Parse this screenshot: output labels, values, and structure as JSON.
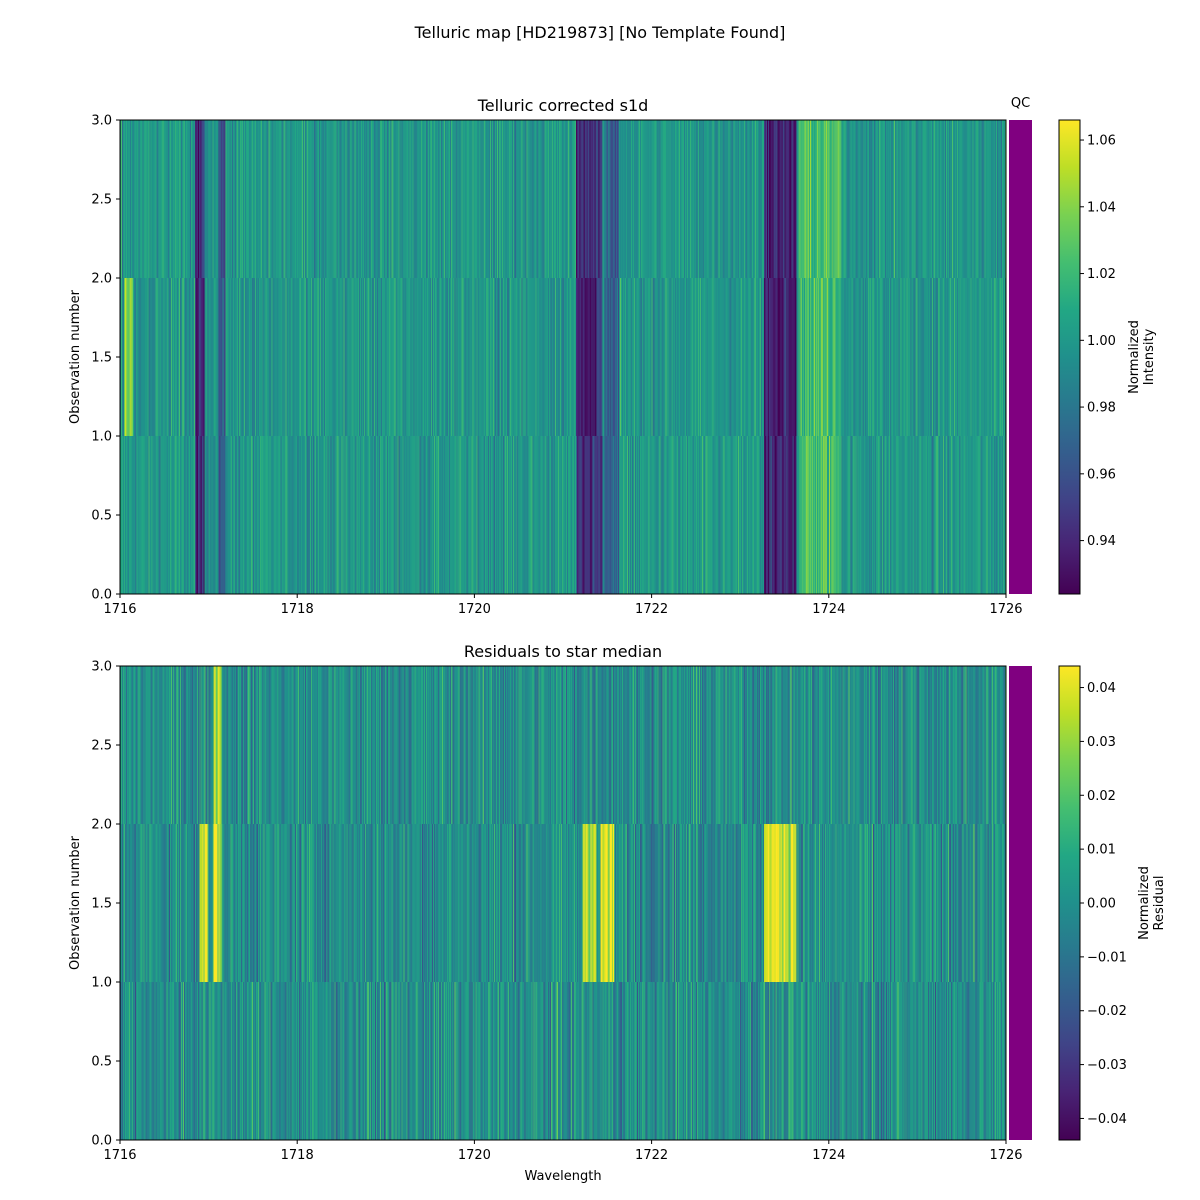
{
  "figure": {
    "suptitle": "Telluric map [HD219873] [No Template Found]",
    "qc_label": "QC",
    "qc_color": "#800080"
  },
  "chart_data": [
    {
      "type": "heatmap",
      "title": "Telluric corrected s1d",
      "xlabel": "",
      "ylabel": "Observation number",
      "xlim": [
        1716,
        1726
      ],
      "ylim": [
        0,
        3
      ],
      "xticks": [
        1716,
        1718,
        1720,
        1722,
        1724,
        1726
      ],
      "xtick_labels": [
        "1716",
        "1718",
        "1720",
        "1722",
        "1724",
        "1726"
      ],
      "yticks": [
        0,
        0.5,
        1,
        1.5,
        2,
        2.5,
        3
      ],
      "ytick_labels": [
        "0.0",
        "0.5",
        "1.0",
        "1.5",
        "2.0",
        "2.5",
        "3.0"
      ],
      "colormap": "viridis",
      "vmin": 0.924,
      "vmax": 1.066,
      "baseline": 1.0,
      "noise": 0.014,
      "rows": 3,
      "columns": 900,
      "colorbar": {
        "label": [
          "Normalized",
          "Intensity"
        ],
        "ticks": [
          0.94,
          0.96,
          0.98,
          1.0,
          1.02,
          1.04,
          1.06
        ],
        "tick_labels": [
          "0.94",
          "0.96",
          "0.98",
          "1.00",
          "1.02",
          "1.04",
          "1.06"
        ]
      },
      "features": [
        {
          "center": 1716.1,
          "width": 0.05,
          "depth": 0.05,
          "rows": [
            1
          ]
        },
        {
          "center": 1716.9,
          "width": 0.06,
          "depth": -0.07,
          "rows": [
            0,
            1,
            2
          ]
        },
        {
          "center": 1717.15,
          "width": 0.04,
          "depth": -0.05,
          "rows": [
            0,
            1,
            2
          ]
        },
        {
          "center": 1721.3,
          "width": 0.15,
          "depth": -0.07,
          "rows": [
            0,
            1,
            2
          ]
        },
        {
          "center": 1721.55,
          "width": 0.08,
          "depth": -0.04,
          "rows": [
            0,
            1,
            2
          ]
        },
        {
          "center": 1723.45,
          "width": 0.18,
          "depth": -0.08,
          "rows": [
            0,
            1,
            2
          ]
        },
        {
          "center": 1723.9,
          "width": 0.25,
          "depth": 0.03,
          "rows": [
            0,
            1,
            2
          ]
        }
      ]
    },
    {
      "type": "heatmap",
      "title": "Residuals to star median",
      "xlabel": "Wavelength",
      "ylabel": "Observation number",
      "xlim": [
        1716,
        1726
      ],
      "ylim": [
        0,
        3
      ],
      "xticks": [
        1716,
        1718,
        1720,
        1722,
        1724,
        1726
      ],
      "xtick_labels": [
        "1716",
        "1718",
        "1720",
        "1722",
        "1724",
        "1726"
      ],
      "yticks": [
        0,
        0.5,
        1,
        1.5,
        2,
        2.5,
        3
      ],
      "ytick_labels": [
        "0.0",
        "0.5",
        "1.0",
        "1.5",
        "2.0",
        "2.5",
        "3.0"
      ],
      "colormap": "viridis",
      "vmin": -0.044,
      "vmax": 0.044,
      "baseline": 0.0,
      "noise": 0.012,
      "rows": 3,
      "columns": 900,
      "colorbar": {
        "label": [
          "Normalized",
          "Residual"
        ],
        "ticks": [
          -0.04,
          -0.03,
          -0.02,
          -0.01,
          0.0,
          0.01,
          0.02,
          0.03,
          0.04
        ],
        "tick_labels": [
          "−0.04",
          "−0.03",
          "−0.02",
          "−0.01",
          "0.00",
          "0.01",
          "0.02",
          "0.03",
          "0.04"
        ]
      },
      "features": [
        {
          "center": 1716.95,
          "width": 0.05,
          "depth": 0.05,
          "rows": [
            1
          ]
        },
        {
          "center": 1717.1,
          "width": 0.04,
          "depth": 0.05,
          "rows": [
            1,
            2
          ]
        },
        {
          "center": 1721.3,
          "width": 0.08,
          "depth": 0.05,
          "rows": [
            1
          ]
        },
        {
          "center": 1721.5,
          "width": 0.08,
          "depth": 0.05,
          "rows": [
            1
          ]
        },
        {
          "center": 1723.45,
          "width": 0.18,
          "depth": 0.05,
          "rows": [
            1
          ]
        }
      ]
    }
  ]
}
